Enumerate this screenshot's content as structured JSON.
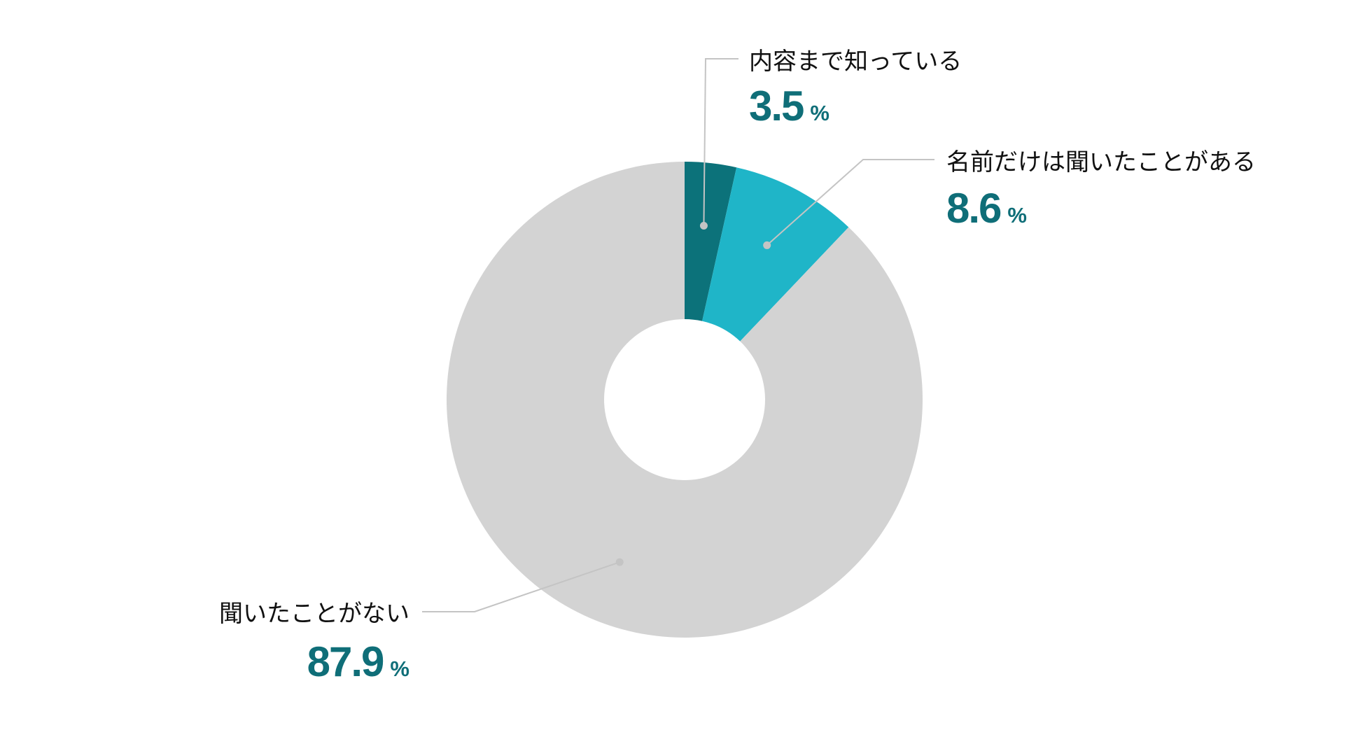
{
  "chart_data": {
    "type": "pie",
    "donut": true,
    "unit": "%",
    "slices": [
      {
        "label": "内容まで知っている",
        "value": 3.5,
        "display": "3.5",
        "color": "#0c727a"
      },
      {
        "label": "名前だけは聞いたことがある",
        "value": 8.6,
        "display": "8.6",
        "color": "#1fb5c8"
      },
      {
        "label": "聞いたことがない",
        "value": 87.9,
        "display": "87.9",
        "color": "#d3d3d3"
      }
    ],
    "colors": {
      "value_text": "#0f6e78",
      "label_text": "#111111",
      "leader_line": "#c4c4c4"
    }
  }
}
